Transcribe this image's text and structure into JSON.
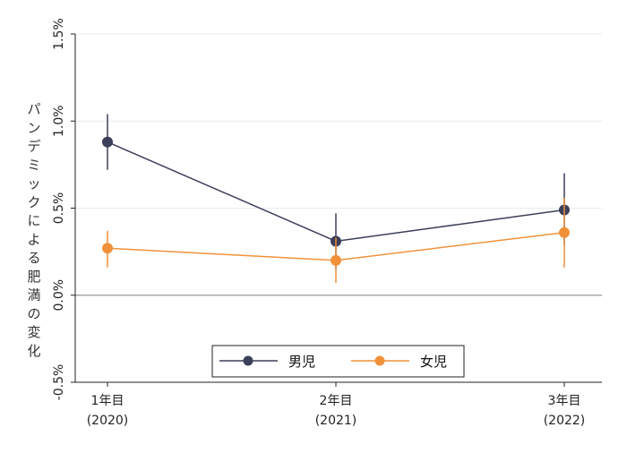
{
  "chart_data": {
    "type": "line",
    "title": "",
    "xlabel": "",
    "ylabel": "パンデミックによる肥満の変化",
    "x_ticks": [
      {
        "line1": "1年目",
        "line2": "(2020)"
      },
      {
        "line1": "2年目",
        "line2": "(2021)"
      },
      {
        "line1": "3年目",
        "line2": "(2022)"
      }
    ],
    "y_ticks": [
      "1.5%",
      "1.0%",
      "0.5%",
      "0.0%",
      "-0.5%"
    ],
    "y_tick_values": [
      1.5,
      1.0,
      0.5,
      0.0,
      -0.5
    ],
    "ylim": [
      -0.5,
      1.5
    ],
    "grid": "horizontal-light",
    "legend_position": "bottom-center",
    "series": [
      {
        "name": "男児",
        "color": "#3c3f5a",
        "values": [
          0.88,
          0.31,
          0.49
        ],
        "ci_low": [
          0.72,
          0.15,
          0.29
        ],
        "ci_high": [
          1.04,
          0.47,
          0.7
        ]
      },
      {
        "name": "女児",
        "color": "#f0913a",
        "values": [
          0.27,
          0.2,
          0.36
        ],
        "ci_low": [
          0.16,
          0.07,
          0.16
        ],
        "ci_high": [
          0.37,
          0.33,
          0.56
        ]
      }
    ]
  }
}
